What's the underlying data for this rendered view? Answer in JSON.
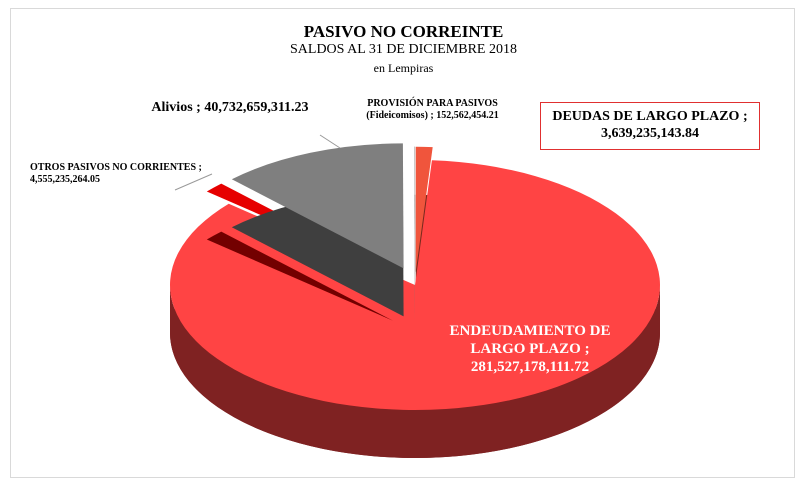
{
  "chart_data": {
    "type": "pie",
    "title": "PASIVO NO CORREINTE",
    "subtitle": "SALDOS AL 31 DE DICIEMBRE 2018",
    "unit": "en Lempiras",
    "separator": ";",
    "categories": [
      "DEUDAS DE LARGO PLAZO",
      "ENDEUDAMIENTO DE LARGO PLAZO",
      "OTROS PASIVOS NO CORRIENTES",
      "Alivios",
      "PROVISIÓN PARA PASIVOS (Fideicomisos)"
    ],
    "values": [
      3639235143.84,
      281527178111.72,
      4555235264.05,
      40732659311.23,
      152562454.21
    ],
    "value_labels": [
      "3,639,235,143.84",
      "281,527,178,111.72",
      "4,555,235,264.05",
      "40,732,659,311.23",
      "152,562,454.21"
    ],
    "colors": [
      "#f0553c",
      "#ff4444",
      "#e60000",
      "#7f7f7f",
      "#f4f4f4"
    ]
  }
}
